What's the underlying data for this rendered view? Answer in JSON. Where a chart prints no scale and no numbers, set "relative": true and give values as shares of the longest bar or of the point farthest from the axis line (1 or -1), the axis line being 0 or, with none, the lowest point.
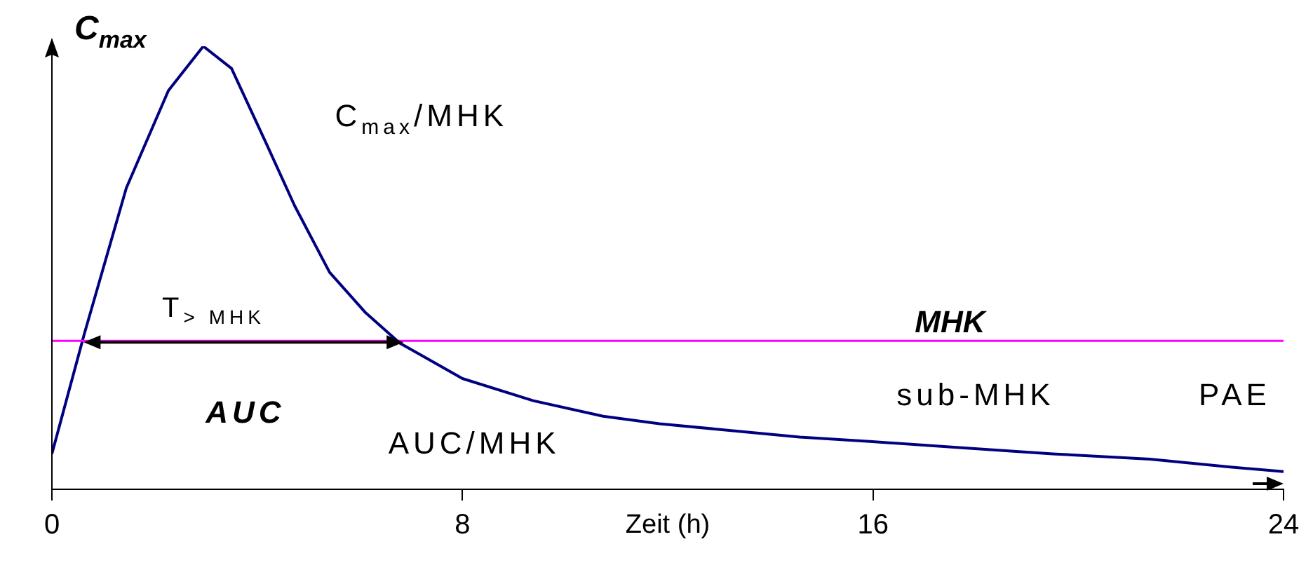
{
  "chart_data": {
    "type": "line",
    "ylabel": "C$_{max}$",
    "xlabel": "Zeit (h)",
    "relative": true,
    "marker": "none",
    "grid": false,
    "legend": false,
    "x": [
      0,
      0.63,
      1.45,
      2.27,
      2.95,
      3.5,
      4.18,
      4.73,
      5.41,
      6.1,
      6.78,
      8.0,
      9.38,
      10.74,
      11.84,
      13.2,
      14.57,
      15.94,
      17.58,
      19.5,
      21.4,
      23.0,
      24
    ],
    "series": [
      {
        "color": "#000080",
        "values": [
          0.08,
          0.35,
          0.68,
          0.9,
          1.0,
          0.95,
          0.78,
          0.64,
          0.49,
          0.4,
          0.33,
          0.25,
          0.2,
          0.165,
          0.148,
          0.133,
          0.118,
          0.108,
          0.095,
          0.08,
          0.068,
          0.05,
          0.04
        ]
      }
    ],
    "xlim": [
      0,
      24
    ],
    "xticks": [
      0,
      8,
      16,
      24
    ],
    "ref_lines": [
      {
        "axis": "y",
        "value": 0.335,
        "label": "MHK",
        "color": "#ff00ff"
      }
    ],
    "annotations": [
      "C$_{max}$/MHK",
      "T$_{> MHK}$",
      "AUC",
      "AUC/MHK",
      "sub-MHK",
      "PAE"
    ]
  }
}
